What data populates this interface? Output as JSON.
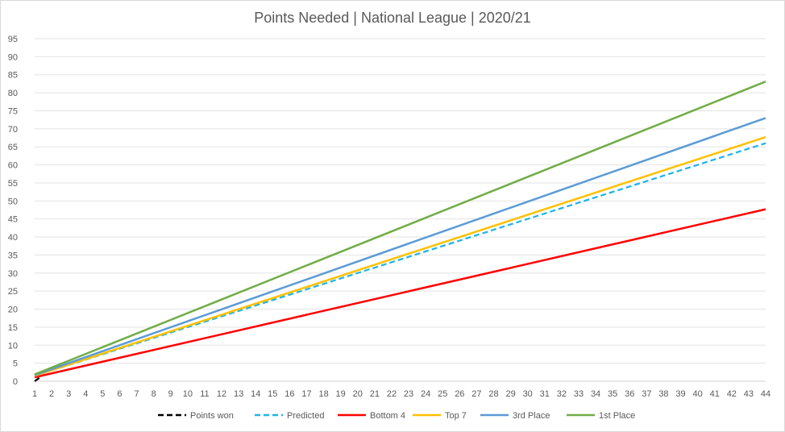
{
  "chart_data": {
    "type": "line",
    "title": "Points Needed  | National League | 2020/21",
    "xlabel": "",
    "ylabel": "",
    "x": [
      1,
      2,
      3,
      4,
      5,
      6,
      7,
      8,
      9,
      10,
      11,
      12,
      13,
      14,
      15,
      16,
      17,
      18,
      19,
      20,
      21,
      22,
      23,
      24,
      25,
      26,
      27,
      28,
      29,
      30,
      31,
      32,
      33,
      34,
      35,
      36,
      37,
      38,
      39,
      40,
      41,
      42,
      43,
      44
    ],
    "xlim": [
      1,
      44
    ],
    "ylim": [
      0,
      95
    ],
    "y_ticks": [
      0,
      5,
      10,
      15,
      20,
      25,
      30,
      35,
      40,
      45,
      50,
      55,
      60,
      65,
      70,
      75,
      80,
      85,
      90,
      95
    ],
    "grid": true,
    "legend_position": "bottom",
    "series": [
      {
        "name": "Points won",
        "color": "#000000",
        "dash": "dashed",
        "x": [
          1,
          1.3
        ],
        "values": [
          0,
          1
        ]
      },
      {
        "name": "Predicted",
        "color": "#1fb5e8",
        "dash": "dashed",
        "x": [
          1,
          44
        ],
        "values": [
          1.5,
          66
        ]
      },
      {
        "name": "Bottom 4",
        "color": "#ff0000",
        "dash": "solid",
        "x": [
          1,
          44
        ],
        "values": [
          1.1,
          47.7
        ]
      },
      {
        "name": "Top 7",
        "color": "#ffc000",
        "dash": "solid",
        "x": [
          1,
          44
        ],
        "values": [
          1.5,
          67.7
        ]
      },
      {
        "name": "3rd Place",
        "color": "#5b9bd5",
        "dash": "solid",
        "x": [
          1,
          44
        ],
        "values": [
          1.7,
          73
        ]
      },
      {
        "name": "1st Place",
        "color": "#70ad47",
        "dash": "solid",
        "x": [
          1,
          44
        ],
        "values": [
          1.9,
          83.1
        ]
      }
    ]
  }
}
